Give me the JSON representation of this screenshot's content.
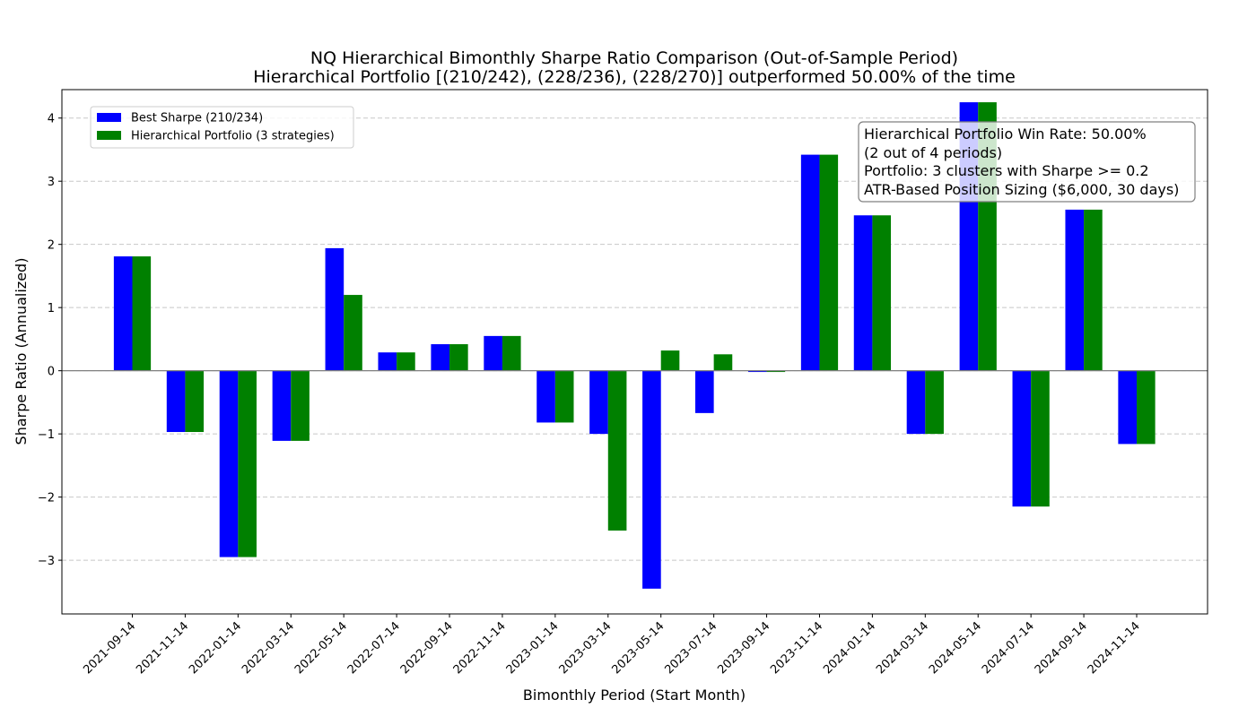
{
  "chart_data": {
    "type": "bar",
    "title": "NQ Hierarchical Bimonthly Sharpe Ratio Comparison (Out-of-Sample Period)",
    "subtitle": "Hierarchical Portfolio [(210/242), (228/236), (228/270)] outperformed 50.00% of the time",
    "xlabel": "Bimonthly Period (Start Month)",
    "ylabel": "Sharpe Ratio (Annualized)",
    "ylim": [
      -3.85,
      4.45
    ],
    "yticks": [
      -3,
      -2,
      -1,
      0,
      1,
      2,
      3,
      4
    ],
    "ytick_labels": [
      "−3",
      "−2",
      "−1",
      "0",
      "1",
      "2",
      "3",
      "4"
    ],
    "grid": "y dashed",
    "legend_position": "upper-left",
    "categories": [
      "2021-09-14",
      "2021-11-14",
      "2022-01-14",
      "2022-03-14",
      "2022-05-14",
      "2022-07-14",
      "2022-09-14",
      "2022-11-14",
      "2023-01-14",
      "2023-03-14",
      "2023-05-14",
      "2023-07-14",
      "2023-09-14",
      "2023-11-14",
      "2024-01-14",
      "2024-03-14",
      "2024-05-14",
      "2024-07-14",
      "2024-09-14",
      "2024-11-14"
    ],
    "series": [
      {
        "name": "Best Sharpe (210/234)",
        "color": "#0000ff",
        "values": [
          1.81,
          -0.97,
          -2.95,
          -1.11,
          1.94,
          0.29,
          0.42,
          0.55,
          -0.82,
          -1.0,
          -3.45,
          -0.67,
          -0.02,
          3.42,
          2.46,
          -1.0,
          4.25,
          -2.15,
          2.55,
          -1.16
        ]
      },
      {
        "name": "Hierarchical Portfolio (3 strategies)",
        "color": "#008000",
        "values": [
          1.81,
          -0.97,
          -2.95,
          -1.11,
          1.2,
          0.29,
          0.42,
          0.55,
          -0.82,
          -2.53,
          0.32,
          0.26,
          -0.02,
          3.42,
          2.46,
          -1.0,
          4.25,
          -2.15,
          2.55,
          -1.16
        ]
      }
    ],
    "annotation": {
      "lines": [
        "Hierarchical Portfolio Win Rate: 50.00%",
        "(2 out of 4 periods)",
        "Portfolio: 3 clusters with Sharpe >= 0.2",
        "ATR-Based Position Sizing ($6,000, 30 days)"
      ],
      "position": "upper-right"
    }
  }
}
